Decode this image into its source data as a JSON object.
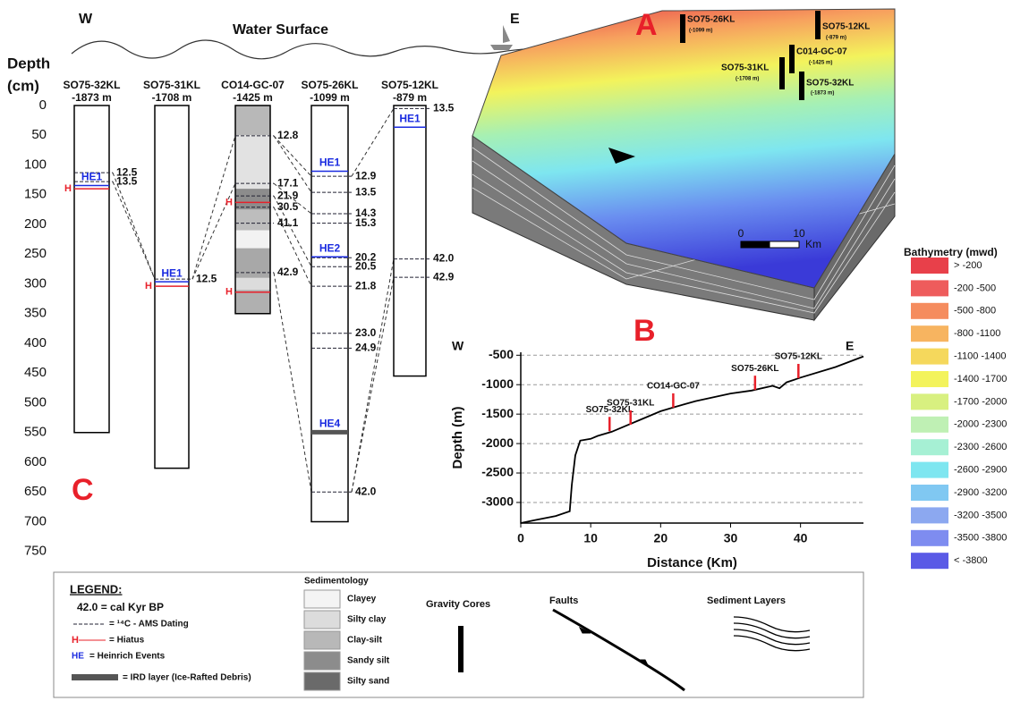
{
  "core_panel": {
    "label": "C",
    "west": "W",
    "east": "E",
    "surface": "Water Surface",
    "axis_title": [
      "Depth",
      "(cm)"
    ],
    "hiatus_label": "H",
    "depth_ticks": [
      0,
      50,
      100,
      150,
      200,
      250,
      300,
      350,
      400,
      450,
      500,
      550,
      600,
      650,
      700,
      750
    ],
    "cores": [
      {
        "name": "SO75-32KL",
        "water_depth": "-1873 m",
        "length": 550,
        "dates": [
          {
            "depth": 113,
            "age": "12.5"
          },
          {
            "depth": 128,
            "age": "13.5"
          }
        ],
        "events": [
          {
            "depth": 130,
            "label": "HE1"
          }
        ],
        "hiatus": [
          140
        ]
      },
      {
        "name": "SO75-31KL",
        "water_depth": "-1708 m",
        "length": 610,
        "dates": [
          {
            "depth": 292,
            "age": "12.5"
          }
        ],
        "events": [
          {
            "depth": 292,
            "label": "HE1"
          }
        ],
        "hiatus": [
          304
        ]
      },
      {
        "name": "CO14-GC-07",
        "water_depth": "-1425 m",
        "length": 350,
        "dates": [
          {
            "depth": 51,
            "age": "12.8"
          },
          {
            "depth": 131,
            "age": "17.1"
          },
          {
            "depth": 152,
            "age": "21.9"
          },
          {
            "depth": 171,
            "age": "30.5"
          },
          {
            "depth": 198,
            "age": "41.1"
          },
          {
            "depth": 281,
            "age": "42.9"
          }
        ],
        "events": [],
        "hiatus": [
          163,
          314
        ]
      },
      {
        "name": "SO75-26KL",
        "water_depth": "-1099 m",
        "length": 700,
        "dates": [
          {
            "depth": 119,
            "age": "12.9"
          },
          {
            "depth": 146,
            "age": "13.5"
          },
          {
            "depth": 182,
            "age": "14.3"
          },
          {
            "depth": 198,
            "age": "15.3"
          },
          {
            "depth": 256,
            "age": "20.2"
          },
          {
            "depth": 271,
            "age": "20.5"
          },
          {
            "depth": 304,
            "age": "21.8"
          },
          {
            "depth": 383,
            "age": "23.0"
          },
          {
            "depth": 408,
            "age": "24.9"
          },
          {
            "depth": 650,
            "age": "42.0"
          }
        ],
        "events": [
          {
            "depth": 106,
            "label": "HE1"
          },
          {
            "depth": 250,
            "label": "HE2"
          },
          {
            "depth": 545,
            "label": "HE4"
          }
        ],
        "hiatus": []
      },
      {
        "name": "SO75-12KL",
        "water_depth": "-879 m",
        "length": 455,
        "dates": [
          {
            "depth": 5,
            "age": "13.5"
          },
          {
            "depth": 258,
            "age": "42.0"
          },
          {
            "depth": 289,
            "age": "42.9"
          }
        ],
        "events": [
          {
            "depth": 32,
            "label": "HE1"
          }
        ],
        "hiatus": []
      }
    ]
  },
  "map_panel": {
    "label": "A",
    "cores": [
      {
        "name": "SO75-26KL",
        "water_depth": "(-1099 m)"
      },
      {
        "name": "SO75-12KL",
        "water_depth": "(-879 m)"
      },
      {
        "name": "C014-GC-07",
        "water_depth": "(-1425 m)"
      },
      {
        "name": "SO75-31KL",
        "water_depth": "(-1708 m)"
      },
      {
        "name": "SO75-32KL",
        "water_depth": "(-1873 m)"
      }
    ],
    "scale_ticks": [
      0,
      10
    ],
    "scale_unit": "Km"
  },
  "bathymetry": {
    "title": "Bathymetry (mwd)",
    "classes": [
      {
        "label": "> -200",
        "color": "#e8404a"
      },
      {
        "label": "-200 -500",
        "color": "#ee5c5c"
      },
      {
        "label": "-500 -800",
        "color": "#f58c5e"
      },
      {
        "label": "-800 -1100",
        "color": "#f7b460"
      },
      {
        "label": "-1100 -1400",
        "color": "#f5d85c"
      },
      {
        "label": "-1400 -1700",
        "color": "#f3f35c"
      },
      {
        "label": "-1700 -2000",
        "color": "#d8f080"
      },
      {
        "label": "-2000 -2300",
        "color": "#bff0b4"
      },
      {
        "label": "-2300 -2600",
        "color": "#a6f0d4"
      },
      {
        "label": "-2600 -2900",
        "color": "#7ee6f0"
      },
      {
        "label": "-2900 -3200",
        "color": "#80c8f2"
      },
      {
        "label": "-3200 -3500",
        "color": "#8ca8f0"
      },
      {
        "label": "-3500 -3800",
        "color": "#7e8cf0"
      },
      {
        "label": "< -3800",
        "color": "#5a5ae6"
      }
    ]
  },
  "chart_data": {
    "type": "line",
    "label": "B",
    "west": "W",
    "east": "E",
    "x_label": "Distance (Km)",
    "y_label": "Depth (m)",
    "color": "#000000",
    "grid": true,
    "x": [
      0,
      2,
      5,
      7,
      7.3,
      7.8,
      8.5,
      10,
      11,
      13,
      15,
      17,
      20,
      22,
      25,
      30,
      33,
      36,
      37,
      38,
      40,
      45,
      49
    ],
    "values": [
      -3350,
      -3300,
      -3230,
      -3150,
      -2700,
      -2200,
      -1950,
      -1920,
      -1870,
      -1800,
      -1700,
      -1600,
      -1450,
      -1380,
      -1280,
      -1150,
      -1100,
      -1020,
      -1060,
      -960,
      -880,
      -700,
      -520
    ],
    "xlim": [
      0,
      49
    ],
    "ylim": [
      -3350,
      -450
    ],
    "xticks": [
      0,
      10,
      20,
      30,
      40
    ],
    "yticks": [
      -500,
      -1000,
      -1500,
      -2000,
      -2500,
      -3000
    ],
    "cores": {
      "color": "#e8202a",
      "names": [
        "SO75-32KL",
        "SO75-31KL",
        "CO14-GC-07",
        "SO75-26KL",
        "SO75-12KL"
      ],
      "x": [
        12.7,
        15.7,
        21.8,
        33.5,
        39.7
      ],
      "values": [
        -1790,
        -1680,
        -1390,
        -1090,
        -890
      ]
    }
  },
  "legend": {
    "title": "LEGEND:",
    "cal": "42.0 = cal Kyr BP",
    "ams": "= ¹⁴C - AMS Dating",
    "hiatus": "= Hiatus",
    "he_abbr": "HE",
    "he": "= Heinrich Events",
    "ird": "= IRD layer (Ice-Rafted Debris)",
    "sedimentology": "Sedimentology",
    "sediments": [
      "Clayey",
      "Silty clay",
      "Clay-silt",
      "Sandy silt",
      "Silty sand"
    ],
    "gravity": "Gravity Cores",
    "faults": "Faults",
    "layers": "Sediment Layers"
  }
}
